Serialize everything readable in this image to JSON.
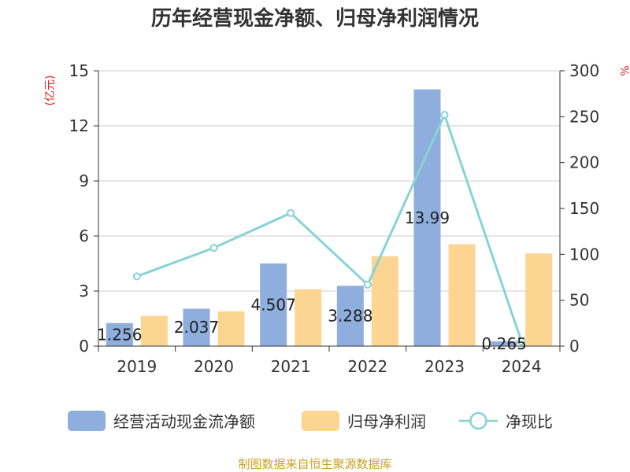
{
  "chart_data": {
    "type": "bar",
    "title": "历年经营现金净额、归母净利润情况",
    "categories": [
      "2019",
      "2020",
      "2021",
      "2022",
      "2023",
      "2024"
    ],
    "series": [
      {
        "name": "经营活动现金流净额",
        "axis": "left",
        "kind": "bar",
        "values": [
          1.256,
          2.037,
          4.507,
          3.288,
          13.99,
          0.265
        ],
        "labels": [
          "1.256",
          "2.037",
          "4.507",
          "3.288",
          "13.99",
          "0.265"
        ]
      },
      {
        "name": "归母净利润",
        "axis": "left",
        "kind": "bar",
        "values": [
          1.65,
          1.9,
          3.1,
          4.9,
          5.55,
          5.05
        ]
      },
      {
        "name": "净现比",
        "axis": "right",
        "kind": "line",
        "values": [
          76,
          107,
          145,
          67,
          252,
          5
        ]
      }
    ],
    "left_axis": {
      "label": "(亿元)",
      "min": 0,
      "max": 15,
      "ticks": [
        0,
        3,
        6,
        9,
        12,
        15
      ],
      "tick_labels": [
        "0",
        "3",
        "6",
        "9",
        "12",
        "15"
      ]
    },
    "right_axis": {
      "label": "%",
      "min": 0,
      "max": 300,
      "ticks": [
        0,
        50,
        100,
        150,
        200,
        250,
        300
      ],
      "tick_labels": [
        "0",
        "50",
        "100",
        "150",
        "200",
        "250",
        "300"
      ]
    },
    "grid": true,
    "legend_position": "bottom",
    "source": "制图数据来自恒生聚源数据库"
  },
  "colors": {
    "cashflow": "#8eaedd",
    "profit": "#fdd593",
    "ratio": "#88d3d6",
    "axis": "#333333",
    "grid": "#cccccc",
    "unit": "#e02020",
    "source": "#c9a227"
  }
}
